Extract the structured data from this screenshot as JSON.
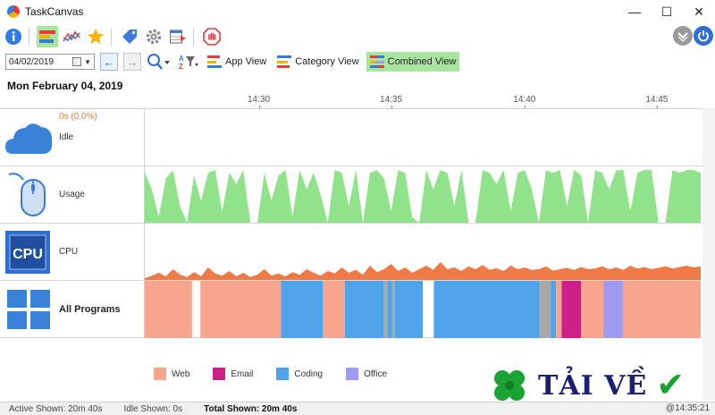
{
  "window": {
    "title": "TaskCanvas",
    "minimize_glyph": "—",
    "maximize_glyph": "☐",
    "close_glyph": "✕"
  },
  "toolbar": {
    "buttons": [
      {
        "name": "info-icon"
      },
      {
        "name": "chart-view-icon",
        "active": true
      },
      {
        "name": "line-chart-icon"
      },
      {
        "name": "star-icon"
      },
      {
        "name": "tag-icon"
      },
      {
        "name": "gear-icon"
      },
      {
        "name": "calendar-export-icon"
      },
      {
        "name": "stop-icon"
      }
    ],
    "right_buttons": [
      {
        "name": "collapse-icon"
      },
      {
        "name": "power-icon"
      }
    ]
  },
  "filterbar": {
    "date_value": "04/02/2019",
    "views": [
      {
        "label": "App View",
        "active": false
      },
      {
        "label": "Category View",
        "active": false
      },
      {
        "label": "Combined View",
        "active": true
      }
    ]
  },
  "header": {
    "date": "Mon February 04, 2019"
  },
  "time_axis": {
    "ticks": [
      "14:30",
      "14:35",
      "14:40",
      "14:45"
    ],
    "tick_positions_pct": [
      20.5,
      44.3,
      68.3,
      92.1
    ]
  },
  "rows": [
    {
      "name": "Idle",
      "stat": "0s (0.0%)",
      "icon": "cloud-icon"
    },
    {
      "name": "Usage",
      "stat": "",
      "icon": "mouse-icon"
    },
    {
      "name": "CPU",
      "stat": "",
      "icon": "cpu-icon"
    },
    {
      "name": "All Programs",
      "stat": "",
      "icon": "programs-grid-icon"
    }
  ],
  "usage_series": [
    0.9,
    0.6,
    0.1,
    0.8,
    0.95,
    0.3,
    0.0,
    0.85,
    0.4,
    0.9,
    0.95,
    0.2,
    0.9,
    0.7,
    0.95,
    0.0,
    0.0,
    0.9,
    0.4,
    0.85,
    0.95,
    0.1,
    0.95,
    0.6,
    0.9,
    0.5,
    0.0,
    0.95,
    0.9,
    0.3,
    0.95,
    0.0,
    0.9,
    0.95,
    0.8,
    0.2,
    0.95,
    0.9,
    0.1,
    0.0,
    0.95,
    0.6,
    0.95,
    0.9,
    0.3,
    0.95,
    0.0,
    0.0,
    0.95,
    0.9,
    0.7,
    0.95,
    0.2,
    0.9,
    0.95,
    0.6,
    0.0,
    0.95,
    0.9,
    0.95,
    0.3,
    0.95,
    0.85,
    0.0,
    0.95,
    0.9,
    0.6,
    0.95,
    0.95,
    0.2,
    0.9,
    0.95,
    0.95,
    0.0,
    0.0,
    0.95,
    0.9,
    0.95,
    0.95,
    0.9
  ],
  "cpu_series": [
    0.05,
    0.12,
    0.2,
    0.1,
    0.3,
    0.15,
    0.08,
    0.22,
    0.1,
    0.35,
    0.18,
    0.12,
    0.25,
    0.1,
    0.2,
    0.08,
    0.15,
    0.3,
    0.12,
    0.18,
    0.1,
    0.22,
    0.14,
    0.3,
    0.2,
    0.12,
    0.25,
    0.18,
    0.35,
    0.2,
    0.28,
    0.15,
    0.4,
    0.22,
    0.3,
    0.45,
    0.25,
    0.35,
    0.2,
    0.3,
    0.4,
    0.28,
    0.5,
    0.3,
    0.35,
    0.25,
    0.38,
    0.3,
    0.42,
    0.28,
    0.33,
    0.25,
    0.4,
    0.3,
    0.35,
    0.28,
    0.3,
    0.38,
    0.26,
    0.3,
    0.34,
    0.28,
    0.36,
    0.3,
    0.32,
    0.38,
    0.3,
    0.35,
    0.28,
    0.4,
    0.32,
    0.36,
    0.3,
    0.34,
    0.38,
    0.32,
    0.36,
    0.4,
    0.35,
    0.38
  ],
  "program_segments": [
    {
      "category": "Web",
      "start": 0.0,
      "end": 0.085
    },
    {
      "category": "Web",
      "start": 0.1,
      "end": 0.245
    },
    {
      "category": "Coding",
      "start": 0.245,
      "end": 0.32
    },
    {
      "category": "Web",
      "start": 0.32,
      "end": 0.36
    },
    {
      "category": "Coding",
      "start": 0.36,
      "end": 0.43
    },
    {
      "category": "Gray",
      "start": 0.43,
      "end": 0.437
    },
    {
      "category": "Coding",
      "start": 0.437,
      "end": 0.445
    },
    {
      "category": "Gray",
      "start": 0.445,
      "end": 0.45
    },
    {
      "category": "Coding",
      "start": 0.45,
      "end": 0.5
    },
    {
      "category": "Coding",
      "start": 0.52,
      "end": 0.71
    },
    {
      "category": "Gray",
      "start": 0.71,
      "end": 0.73
    },
    {
      "category": "Coding",
      "start": 0.73,
      "end": 0.74
    },
    {
      "category": "Web",
      "start": 0.74,
      "end": 0.75
    },
    {
      "category": "Email",
      "start": 0.75,
      "end": 0.785
    },
    {
      "category": "Web",
      "start": 0.785,
      "end": 0.825
    },
    {
      "category": "Office",
      "start": 0.825,
      "end": 0.86
    },
    {
      "category": "Web",
      "start": 0.86,
      "end": 1.0
    }
  ],
  "legend": [
    {
      "label": "Web",
      "color": "#f8a58e"
    },
    {
      "label": "Email",
      "color": "#cc1f8a"
    },
    {
      "label": "Coding",
      "color": "#4fa3e8"
    },
    {
      "label": "Office",
      "color": "#9d9af0"
    }
  ],
  "colors": {
    "gray": "#a9a9a9",
    "usage": "#90e38a",
    "cpu": "#f07a45"
  },
  "watermark": {
    "text": "TẢI VỀ"
  },
  "status": {
    "active": "Active Shown: 20m 40s",
    "idle": "Idle Shown: 0s",
    "total": "Total Shown: 20m 40s",
    "time": "@14:35:21"
  }
}
